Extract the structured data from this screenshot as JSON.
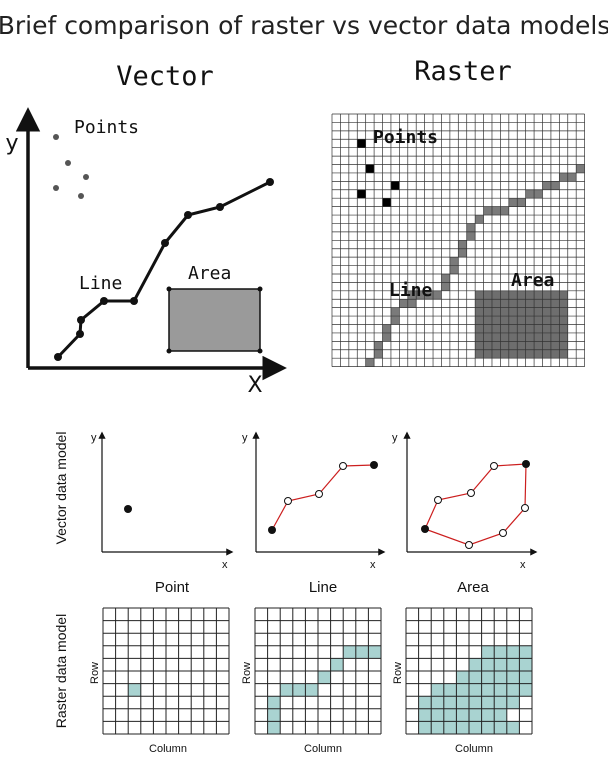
{
  "title": "Brief comparison of raster vs vector data models",
  "top": {
    "vector_heading": "Vector",
    "raster_heading": "Raster",
    "y_label": "y",
    "x_label": "X",
    "points_label": "Points",
    "line_label": "Line",
    "area_label": "Area"
  },
  "bottom": {
    "vector_row_label": "Vector data model",
    "raster_row_label": "Raster data model",
    "axis_y": "y",
    "axis_x": "x",
    "captions": [
      "Point",
      "Line",
      "Area"
    ],
    "grid_x_label": "Column",
    "grid_y_label": "Row"
  },
  "colors": {
    "ink": "#111111",
    "area_fill": "#9a9a9a",
    "raster_cell": "#7a7a7a",
    "raster_area": "#6e6e6e",
    "teal_fill": "#a9d3d1",
    "red_line": "#cc1f1f"
  }
}
